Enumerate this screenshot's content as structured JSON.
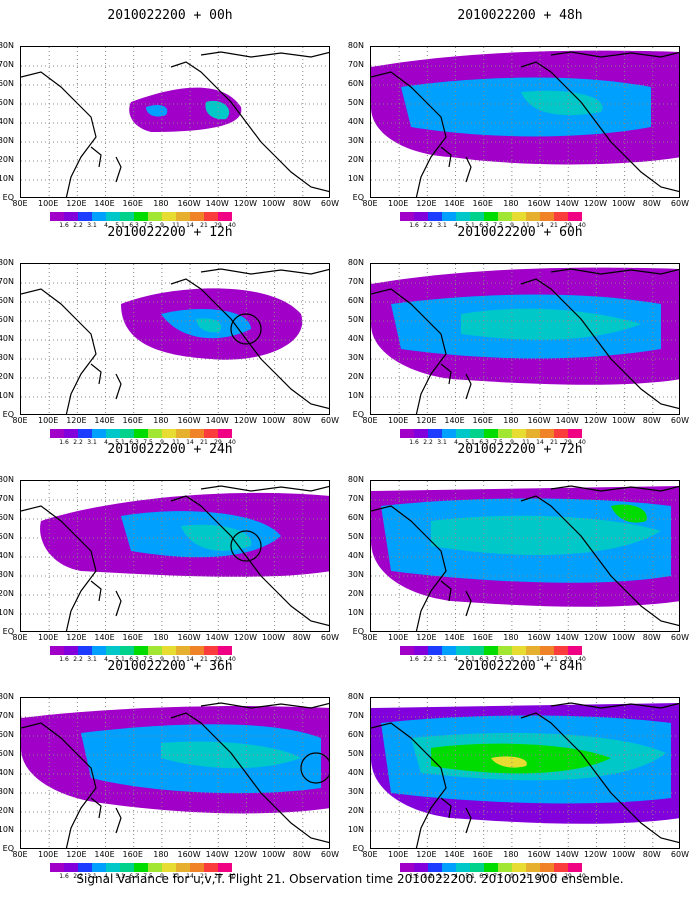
{
  "panels": [
    {
      "title": "2010022200 + 00h"
    },
    {
      "title": "2010022200 + 48h"
    },
    {
      "title": "2010022200 + 12h"
    },
    {
      "title": "2010022200 + 60h"
    },
    {
      "title": "2010022200 + 24h"
    },
    {
      "title": "2010022200 + 72h"
    },
    {
      "title": "2010022200 + 36h"
    },
    {
      "title": "2010022200 + 84h"
    }
  ],
  "lat_labels": [
    "80N",
    "70N",
    "60N",
    "50N",
    "40N",
    "30N",
    "20N",
    "10N",
    "EQ"
  ],
  "lon_labels": [
    "80E",
    "100E",
    "120E",
    "140E",
    "160E",
    "180",
    "160W",
    "140W",
    "120W",
    "100W",
    "80W",
    "60W"
  ],
  "colorbar": {
    "colors": [
      "#a000c8",
      "#8200dc",
      "#1e3cff",
      "#00a0ff",
      "#00c8c8",
      "#00d28c",
      "#00dc00",
      "#a0e632",
      "#e6dc32",
      "#e6af2d",
      "#f08228",
      "#fa3c3c",
      "#f00082"
    ],
    "labels": [
      "1.6",
      "2.2",
      "3.1",
      "4",
      "5.1",
      "6.3",
      "7.5",
      "9",
      "11",
      "14",
      "21",
      "29",
      "40"
    ]
  },
  "footer": "Signal Variance for u,v,T. Flight 21. Observation time 2010022200. 2010021900 ensemble."
}
